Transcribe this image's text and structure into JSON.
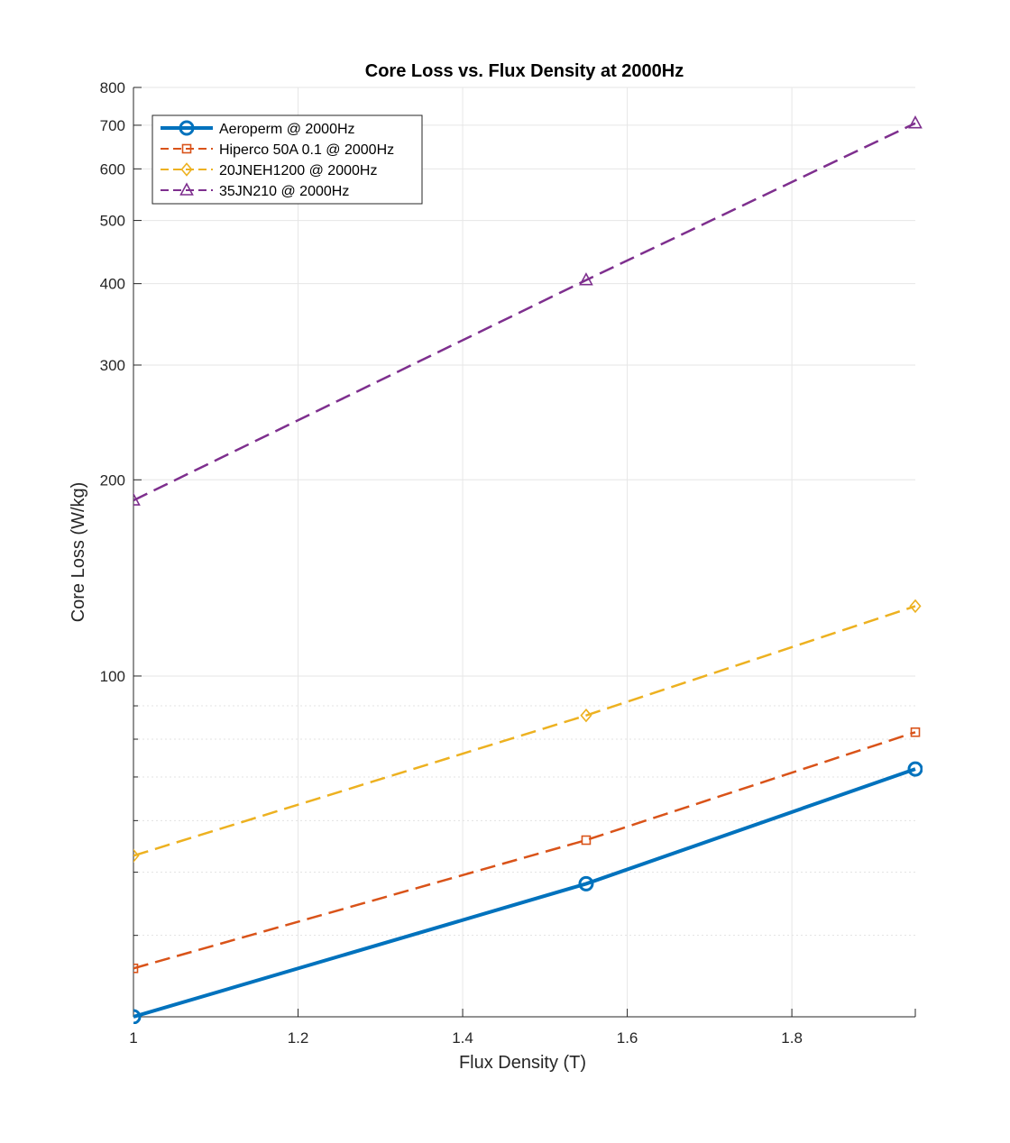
{
  "chart_data": {
    "type": "line",
    "title": "Core Loss vs. Flux Density at 2000Hz",
    "xlabel": "Flux Density (T)",
    "ylabel": "Core Loss (W/kg)",
    "xlim": [
      1,
      1.95
    ],
    "ylim": [
      30,
      800
    ],
    "yscale": "log",
    "grid": true,
    "legend_position": "top-left",
    "x_ticks": [
      "1",
      "1.2",
      "1.4",
      "1.6",
      "1.8"
    ],
    "x_tick_values": [
      1,
      1.2,
      1.4,
      1.6,
      1.8
    ],
    "y_ticks": [
      "100",
      "200",
      "300",
      "400",
      "500",
      "600",
      "700",
      "800"
    ],
    "y_tick_values": [
      100,
      200,
      300,
      400,
      500,
      600,
      700,
      800
    ],
    "y_minor_values": [
      40,
      50,
      60,
      70,
      80,
      90
    ],
    "x": [
      1.0,
      1.55,
      1.95
    ],
    "series": [
      {
        "name": "Aeroperm @ 2000Hz",
        "values": [
          30,
          48,
          72
        ],
        "color": "#0072BD",
        "marker": "circle",
        "dash": "solid"
      },
      {
        "name": "Hiperco 50A 0.1 @ 2000Hz",
        "values": [
          35.6,
          56,
          82
        ],
        "color": "#D95319",
        "marker": "square",
        "dash": "dashed"
      },
      {
        "name": "20JNEH1200 @ 2000Hz",
        "values": [
          53,
          87,
          128
        ],
        "color": "#EDB120",
        "marker": "diamond",
        "dash": "dashed"
      },
      {
        "name": "35JN210 @ 2000Hz",
        "values": [
          186,
          405,
          705
        ],
        "color": "#7E2F8E",
        "marker": "triangle",
        "dash": "dashed"
      }
    ]
  }
}
